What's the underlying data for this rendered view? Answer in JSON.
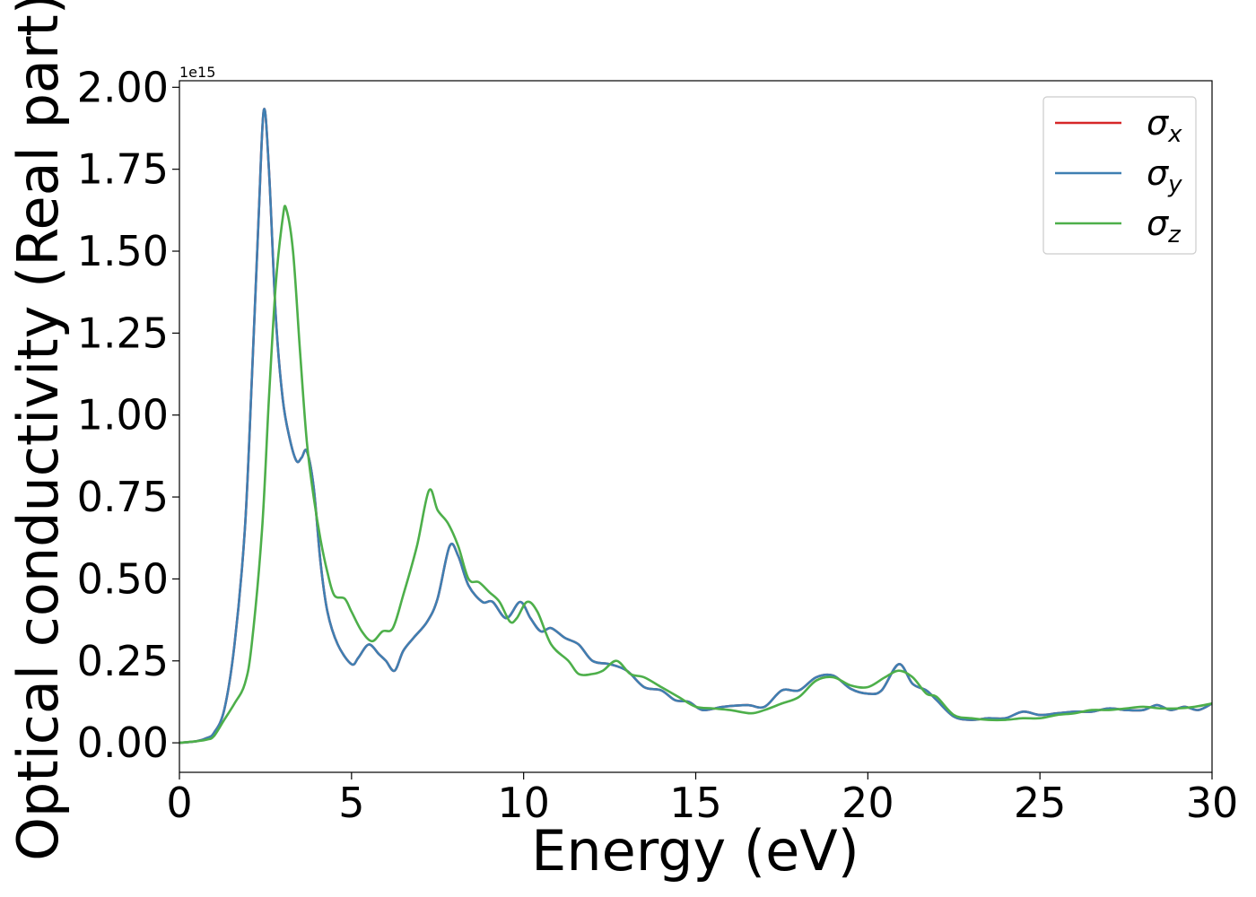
{
  "chart_data": {
    "type": "line",
    "xlabel": "Energy (eV)",
    "ylabel": "Optical conductivity (Real part)",
    "y_offset_text": "1e15",
    "y_scale_factor": 1000000000000000.0,
    "xlim": [
      0,
      30
    ],
    "ylim": [
      -0.09,
      2.02
    ],
    "x_ticks": [
      0,
      5,
      10,
      15,
      20,
      25,
      30
    ],
    "x_tick_labels": [
      "0",
      "5",
      "10",
      "15",
      "20",
      "25",
      "30"
    ],
    "y_ticks": [
      0.0,
      0.25,
      0.5,
      0.75,
      1.0,
      1.25,
      1.5,
      1.75,
      2.0
    ],
    "y_tick_labels": [
      "0.00",
      "0.25",
      "0.50",
      "0.75",
      "1.00",
      "1.25",
      "1.50",
      "1.75",
      "2.00"
    ],
    "grid": false,
    "legend": {
      "position": "top-right"
    },
    "series": [
      {
        "name": "σx",
        "symbol": "σ",
        "subscript": "x",
        "color": "#d62728",
        "points": [
          [
            0,
            0
          ],
          [
            0.5,
            0.005
          ],
          [
            0.8,
            0.015
          ],
          [
            1.0,
            0.03
          ],
          [
            1.3,
            0.1
          ],
          [
            1.6,
            0.3
          ],
          [
            1.9,
            0.65
          ],
          [
            2.1,
            1.1
          ],
          [
            2.3,
            1.6
          ],
          [
            2.45,
            1.93
          ],
          [
            2.6,
            1.75
          ],
          [
            2.8,
            1.3
          ],
          [
            3.0,
            1.05
          ],
          [
            3.2,
            0.93
          ],
          [
            3.4,
            0.86
          ],
          [
            3.55,
            0.87
          ],
          [
            3.7,
            0.89
          ],
          [
            3.9,
            0.78
          ],
          [
            4.1,
            0.55
          ],
          [
            4.3,
            0.4
          ],
          [
            4.6,
            0.3
          ],
          [
            5.0,
            0.24
          ],
          [
            5.2,
            0.26
          ],
          [
            5.5,
            0.3
          ],
          [
            5.8,
            0.27
          ],
          [
            6.0,
            0.25
          ],
          [
            6.25,
            0.22
          ],
          [
            6.5,
            0.28
          ],
          [
            6.8,
            0.32
          ],
          [
            7.2,
            0.37
          ],
          [
            7.5,
            0.44
          ],
          [
            7.85,
            0.6
          ],
          [
            8.1,
            0.57
          ],
          [
            8.4,
            0.48
          ],
          [
            8.8,
            0.43
          ],
          [
            9.1,
            0.43
          ],
          [
            9.5,
            0.38
          ],
          [
            9.9,
            0.43
          ],
          [
            10.2,
            0.38
          ],
          [
            10.5,
            0.34
          ],
          [
            10.8,
            0.35
          ],
          [
            11.2,
            0.32
          ],
          [
            11.6,
            0.3
          ],
          [
            12.0,
            0.25
          ],
          [
            12.5,
            0.24
          ],
          [
            13.0,
            0.22
          ],
          [
            13.5,
            0.17
          ],
          [
            14.0,
            0.16
          ],
          [
            14.4,
            0.13
          ],
          [
            14.8,
            0.125
          ],
          [
            15.2,
            0.1
          ],
          [
            15.8,
            0.11
          ],
          [
            16.5,
            0.115
          ],
          [
            17.0,
            0.11
          ],
          [
            17.5,
            0.16
          ],
          [
            18.0,
            0.16
          ],
          [
            18.5,
            0.2
          ],
          [
            19.0,
            0.205
          ],
          [
            19.5,
            0.165
          ],
          [
            20.0,
            0.15
          ],
          [
            20.4,
            0.16
          ],
          [
            20.9,
            0.24
          ],
          [
            21.3,
            0.18
          ],
          [
            21.7,
            0.16
          ],
          [
            22.0,
            0.13
          ],
          [
            22.5,
            0.08
          ],
          [
            23.0,
            0.07
          ],
          [
            23.5,
            0.075
          ],
          [
            24.0,
            0.075
          ],
          [
            24.5,
            0.095
          ],
          [
            25.0,
            0.085
          ],
          [
            25.5,
            0.09
          ],
          [
            26.0,
            0.095
          ],
          [
            26.5,
            0.095
          ],
          [
            27.0,
            0.105
          ],
          [
            27.5,
            0.1
          ],
          [
            28.0,
            0.1
          ],
          [
            28.4,
            0.115
          ],
          [
            28.8,
            0.1
          ],
          [
            29.2,
            0.11
          ],
          [
            29.6,
            0.1
          ],
          [
            30.0,
            0.12
          ]
        ]
      },
      {
        "name": "σy",
        "symbol": "σ",
        "subscript": "y",
        "color": "#3f7fb2",
        "points": [
          [
            0,
            0
          ],
          [
            0.5,
            0.005
          ],
          [
            0.8,
            0.015
          ],
          [
            1.0,
            0.03
          ],
          [
            1.3,
            0.1
          ],
          [
            1.6,
            0.3
          ],
          [
            1.9,
            0.65
          ],
          [
            2.1,
            1.1
          ],
          [
            2.3,
            1.6
          ],
          [
            2.45,
            1.93
          ],
          [
            2.6,
            1.75
          ],
          [
            2.8,
            1.3
          ],
          [
            3.0,
            1.05
          ],
          [
            3.2,
            0.93
          ],
          [
            3.4,
            0.86
          ],
          [
            3.55,
            0.87
          ],
          [
            3.7,
            0.89
          ],
          [
            3.9,
            0.78
          ],
          [
            4.1,
            0.55
          ],
          [
            4.3,
            0.4
          ],
          [
            4.6,
            0.3
          ],
          [
            5.0,
            0.24
          ],
          [
            5.2,
            0.26
          ],
          [
            5.5,
            0.3
          ],
          [
            5.8,
            0.27
          ],
          [
            6.0,
            0.25
          ],
          [
            6.25,
            0.22
          ],
          [
            6.5,
            0.28
          ],
          [
            6.8,
            0.32
          ],
          [
            7.2,
            0.37
          ],
          [
            7.5,
            0.44
          ],
          [
            7.85,
            0.6
          ],
          [
            8.1,
            0.57
          ],
          [
            8.4,
            0.48
          ],
          [
            8.8,
            0.43
          ],
          [
            9.1,
            0.43
          ],
          [
            9.5,
            0.38
          ],
          [
            9.9,
            0.43
          ],
          [
            10.2,
            0.38
          ],
          [
            10.5,
            0.34
          ],
          [
            10.8,
            0.35
          ],
          [
            11.2,
            0.32
          ],
          [
            11.6,
            0.3
          ],
          [
            12.0,
            0.25
          ],
          [
            12.5,
            0.24
          ],
          [
            13.0,
            0.22
          ],
          [
            13.5,
            0.17
          ],
          [
            14.0,
            0.16
          ],
          [
            14.4,
            0.13
          ],
          [
            14.8,
            0.125
          ],
          [
            15.2,
            0.1
          ],
          [
            15.8,
            0.11
          ],
          [
            16.5,
            0.115
          ],
          [
            17.0,
            0.11
          ],
          [
            17.5,
            0.16
          ],
          [
            18.0,
            0.16
          ],
          [
            18.5,
            0.2
          ],
          [
            19.0,
            0.205
          ],
          [
            19.5,
            0.165
          ],
          [
            20.0,
            0.15
          ],
          [
            20.4,
            0.16
          ],
          [
            20.9,
            0.24
          ],
          [
            21.3,
            0.18
          ],
          [
            21.7,
            0.16
          ],
          [
            22.0,
            0.13
          ],
          [
            22.5,
            0.08
          ],
          [
            23.0,
            0.07
          ],
          [
            23.5,
            0.075
          ],
          [
            24.0,
            0.075
          ],
          [
            24.5,
            0.095
          ],
          [
            25.0,
            0.085
          ],
          [
            25.5,
            0.09
          ],
          [
            26.0,
            0.095
          ],
          [
            26.5,
            0.095
          ],
          [
            27.0,
            0.105
          ],
          [
            27.5,
            0.1
          ],
          [
            28.0,
            0.1
          ],
          [
            28.4,
            0.115
          ],
          [
            28.8,
            0.1
          ],
          [
            29.2,
            0.11
          ],
          [
            29.6,
            0.1
          ],
          [
            30.0,
            0.12
          ]
        ]
      },
      {
        "name": "σz",
        "symbol": "σ",
        "subscript": "z",
        "color": "#4daf4a",
        "points": [
          [
            0,
            0
          ],
          [
            0.5,
            0.005
          ],
          [
            0.8,
            0.01
          ],
          [
            1.0,
            0.02
          ],
          [
            1.3,
            0.07
          ],
          [
            1.6,
            0.12
          ],
          [
            1.9,
            0.18
          ],
          [
            2.1,
            0.3
          ],
          [
            2.4,
            0.65
          ],
          [
            2.6,
            1.05
          ],
          [
            2.8,
            1.4
          ],
          [
            3.0,
            1.6
          ],
          [
            3.1,
            1.63
          ],
          [
            3.3,
            1.5
          ],
          [
            3.5,
            1.2
          ],
          [
            3.7,
            0.92
          ],
          [
            3.9,
            0.75
          ],
          [
            4.1,
            0.62
          ],
          [
            4.3,
            0.52
          ],
          [
            4.5,
            0.45
          ],
          [
            4.8,
            0.44
          ],
          [
            5.0,
            0.4
          ],
          [
            5.3,
            0.34
          ],
          [
            5.6,
            0.31
          ],
          [
            5.9,
            0.34
          ],
          [
            6.2,
            0.35
          ],
          [
            6.5,
            0.45
          ],
          [
            6.9,
            0.6
          ],
          [
            7.25,
            0.77
          ],
          [
            7.5,
            0.71
          ],
          [
            7.8,
            0.67
          ],
          [
            8.1,
            0.6
          ],
          [
            8.4,
            0.5
          ],
          [
            8.7,
            0.49
          ],
          [
            9.0,
            0.46
          ],
          [
            9.3,
            0.43
          ],
          [
            9.6,
            0.37
          ],
          [
            9.8,
            0.38
          ],
          [
            10.1,
            0.43
          ],
          [
            10.4,
            0.4
          ],
          [
            10.8,
            0.3
          ],
          [
            11.3,
            0.25
          ],
          [
            11.6,
            0.21
          ],
          [
            12.0,
            0.21
          ],
          [
            12.3,
            0.22
          ],
          [
            12.7,
            0.25
          ],
          [
            13.1,
            0.21
          ],
          [
            13.5,
            0.2
          ],
          [
            14.0,
            0.17
          ],
          [
            14.5,
            0.14
          ],
          [
            15.0,
            0.11
          ],
          [
            15.5,
            0.105
          ],
          [
            16.0,
            0.1
          ],
          [
            16.6,
            0.09
          ],
          [
            17.0,
            0.1
          ],
          [
            17.5,
            0.12
          ],
          [
            18.0,
            0.14
          ],
          [
            18.5,
            0.19
          ],
          [
            19.0,
            0.2
          ],
          [
            19.5,
            0.175
          ],
          [
            20.0,
            0.17
          ],
          [
            20.5,
            0.2
          ],
          [
            20.9,
            0.22
          ],
          [
            21.3,
            0.2
          ],
          [
            21.7,
            0.15
          ],
          [
            22.0,
            0.14
          ],
          [
            22.5,
            0.085
          ],
          [
            23.0,
            0.075
          ],
          [
            23.5,
            0.07
          ],
          [
            24.0,
            0.07
          ],
          [
            24.5,
            0.075
          ],
          [
            25.0,
            0.075
          ],
          [
            25.5,
            0.085
          ],
          [
            26.0,
            0.09
          ],
          [
            26.5,
            0.1
          ],
          [
            27.0,
            0.1
          ],
          [
            27.5,
            0.105
          ],
          [
            28.0,
            0.11
          ],
          [
            28.5,
            0.105
          ],
          [
            29.0,
            0.105
          ],
          [
            29.5,
            0.11
          ],
          [
            30.0,
            0.12
          ]
        ]
      }
    ]
  }
}
